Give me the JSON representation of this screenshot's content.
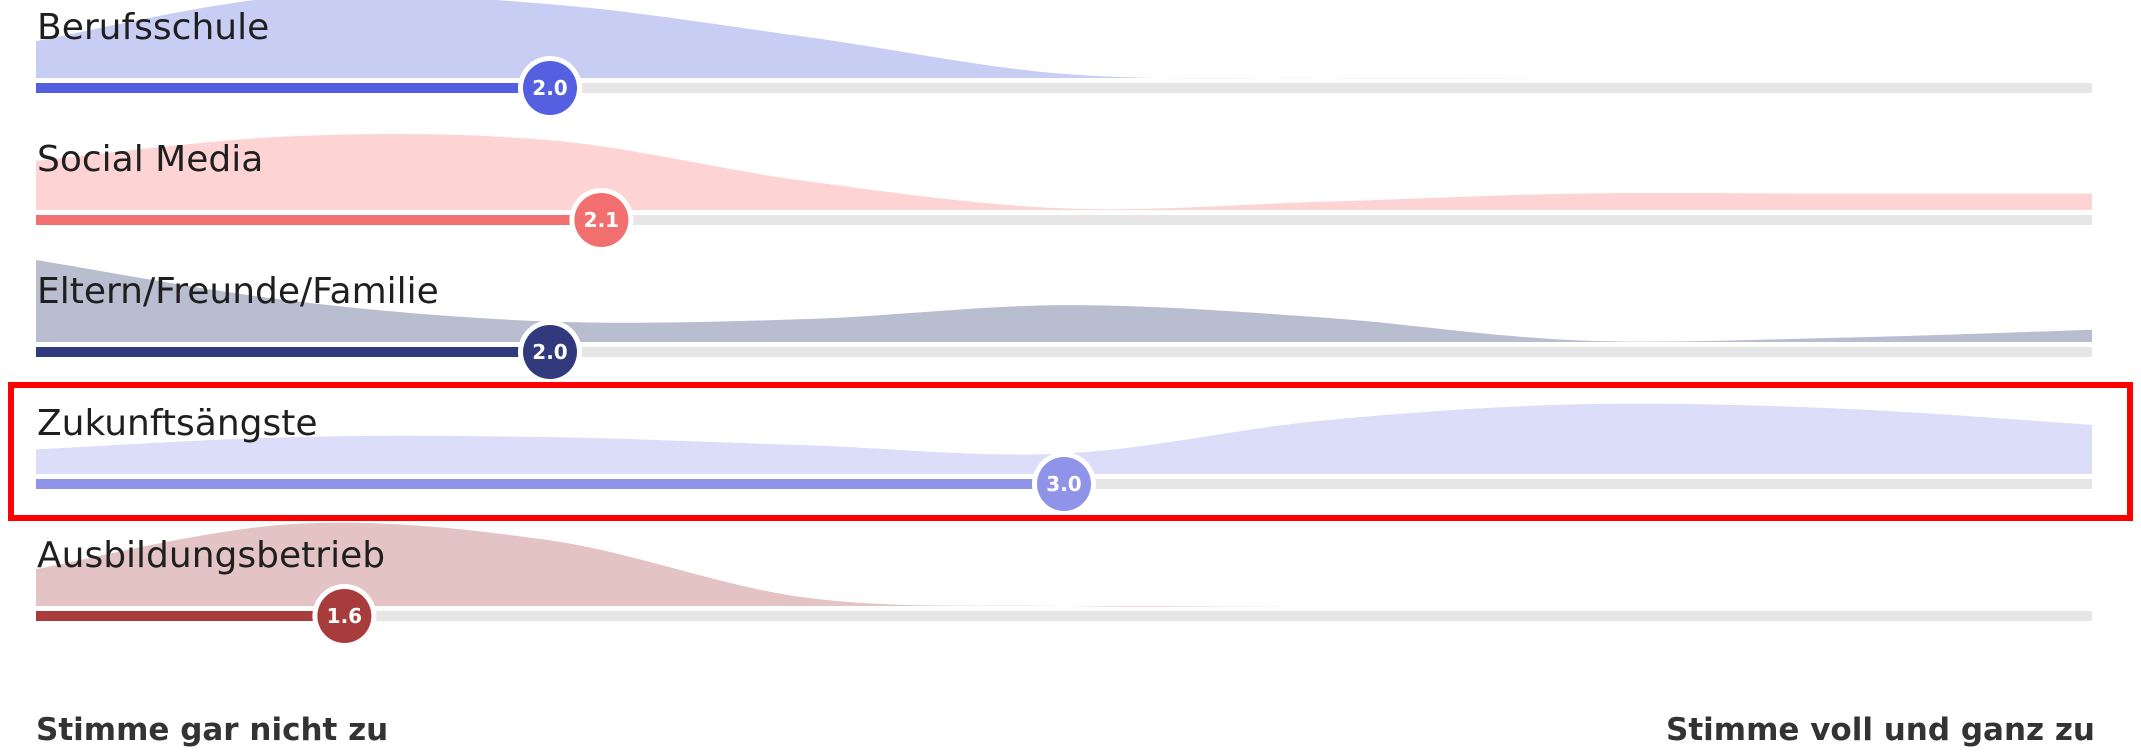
{
  "chart_data": {
    "type": "slider-distribution",
    "xlim": [
      1,
      5
    ],
    "grid": false,
    "scale_min_label": "Stimme gar nicht zu",
    "scale_max_label": "Stimme voll und ganz zu",
    "highlighted_row": "Zukunftsängste",
    "rows": [
      {
        "label": "Berufsschule",
        "value": 2.0,
        "display": "2.0",
        "color": "#5560e0",
        "fill": "#c8cdf4",
        "distribution": {
          "x": [
            1,
            1.5,
            2,
            2.5,
            3,
            3.5,
            4,
            4.5,
            5
          ],
          "y": [
            0.45,
            1.0,
            0.9,
            0.5,
            0.05,
            0,
            0,
            0,
            0
          ]
        }
      },
      {
        "label": "Social Media",
        "value": 2.1,
        "display": "2.1",
        "color": "#f26f6f",
        "fill": "#fdd3d3",
        "distribution": {
          "x": [
            1,
            1.5,
            2,
            2.5,
            3,
            3.5,
            4,
            4.5,
            5
          ],
          "y": [
            0.6,
            0.9,
            0.85,
            0.35,
            0.02,
            0.1,
            0.2,
            0.2,
            0.2
          ]
        }
      },
      {
        "label": "Eltern/Freunde/Familie",
        "value": 2.0,
        "display": "2.0",
        "color": "#323a7e",
        "fill": "#b8bed0",
        "distribution": {
          "x": [
            1,
            1.5,
            2,
            2.5,
            3,
            3.5,
            4,
            4.5,
            5
          ],
          "y": [
            1.0,
            0.5,
            0.25,
            0.28,
            0.45,
            0.3,
            0.02,
            0.05,
            0.15
          ]
        }
      },
      {
        "label": "Zukunftsängste",
        "value": 3.0,
        "display": "3.0",
        "color": "#8f94e8",
        "fill": "#dcddf8",
        "distribution": {
          "x": [
            1,
            1.5,
            2,
            2.5,
            3,
            3.5,
            4,
            4.5,
            5
          ],
          "y": [
            0.3,
            0.45,
            0.45,
            0.35,
            0.25,
            0.65,
            0.85,
            0.8,
            0.6
          ]
        }
      },
      {
        "label": "Ausbildungsbetrieb",
        "value": 1.6,
        "display": "1.6",
        "color": "#a83c3c",
        "fill": "#e3c3c3",
        "distribution": {
          "x": [
            1,
            1.5,
            2,
            2.5,
            3,
            3.5,
            4,
            4.5,
            5
          ],
          "y": [
            0.45,
            1.0,
            0.8,
            0.1,
            0,
            0,
            0,
            0,
            0
          ]
        }
      }
    ]
  }
}
